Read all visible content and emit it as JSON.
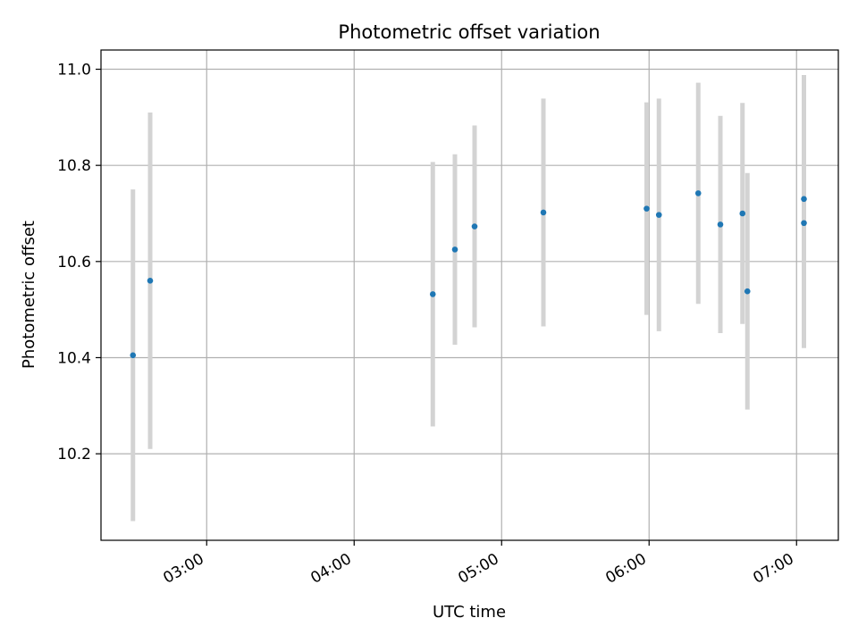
{
  "chart_data": {
    "type": "scatter",
    "title": "Photometric offset variation",
    "xlabel": "UTC time",
    "ylabel": "Photometric offset",
    "x_ticks": [
      "03:00",
      "04:00",
      "05:00",
      "06:00",
      "07:00"
    ],
    "y_ticks": [
      "10.2",
      "10.4",
      "10.6",
      "10.8",
      "11.0"
    ],
    "xlim": [
      "02:17",
      "07:17"
    ],
    "ylim": [
      10.02,
      11.04
    ],
    "grid": true,
    "colors": {
      "point": "#1f77b4",
      "errorbar": "#d3d3d3",
      "grid": "#b0b0b0"
    },
    "points": [
      {
        "x": "02:30",
        "y": 10.405,
        "ylow": 10.06,
        "yhigh": 10.75
      },
      {
        "x": "02:37",
        "y": 10.56,
        "ylow": 10.21,
        "yhigh": 10.91
      },
      {
        "x": "04:32",
        "y": 10.532,
        "ylow": 10.257,
        "yhigh": 10.807
      },
      {
        "x": "04:41",
        "y": 10.625,
        "ylow": 10.427,
        "yhigh": 10.823
      },
      {
        "x": "04:49",
        "y": 10.673,
        "ylow": 10.463,
        "yhigh": 10.883
      },
      {
        "x": "05:17",
        "y": 10.702,
        "ylow": 10.465,
        "yhigh": 10.939
      },
      {
        "x": "05:59",
        "y": 10.71,
        "ylow": 10.489,
        "yhigh": 10.931
      },
      {
        "x": "06:04",
        "y": 10.697,
        "ylow": 10.455,
        "yhigh": 10.939
      },
      {
        "x": "06:20",
        "y": 10.742,
        "ylow": 10.512,
        "yhigh": 10.972
      },
      {
        "x": "06:29",
        "y": 10.677,
        "ylow": 10.451,
        "yhigh": 10.903
      },
      {
        "x": "06:38",
        "y": 10.7,
        "ylow": 10.47,
        "yhigh": 10.93
      },
      {
        "x": "06:40",
        "y": 10.538,
        "ylow": 10.292,
        "yhigh": 10.784
      },
      {
        "x": "07:03",
        "y": 10.73,
        "ylow": 10.472,
        "yhigh": 10.988
      },
      {
        "x": "07:03",
        "y": 10.68,
        "ylow": 10.42,
        "yhigh": 10.94
      }
    ]
  }
}
